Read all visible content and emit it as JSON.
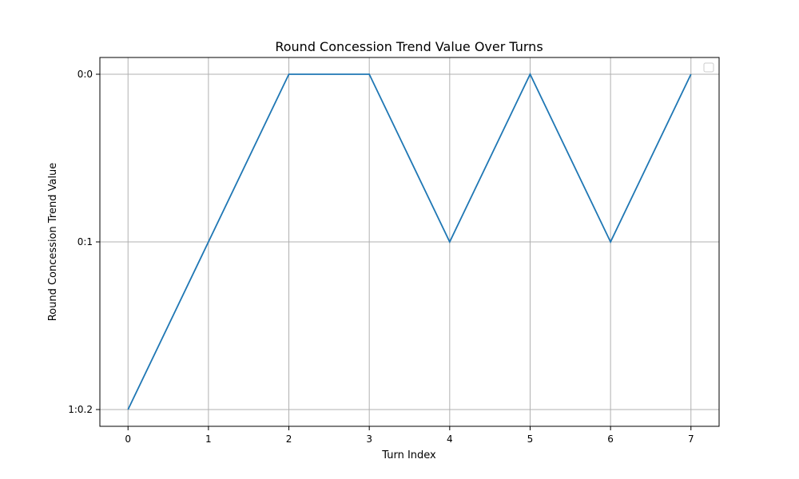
{
  "chart_data": {
    "type": "line",
    "title": "Round Concession Trend Value Over Turns",
    "xlabel": "Turn Index",
    "ylabel": "Round Concession Trend Value",
    "x": [
      0,
      1,
      2,
      3,
      4,
      5,
      6,
      7
    ],
    "y_categories": [
      "1:0.2",
      "0:1",
      "0:0"
    ],
    "series": [
      {
        "values": [
          "1:0.2",
          "0:1",
          "0:0",
          "0:0",
          "0:1",
          "0:0",
          "0:1",
          "0:0"
        ],
        "color": "#1f77b4"
      }
    ],
    "xlim": [
      -0.35,
      7.35
    ],
    "grid": true,
    "legend": "upper-right, empty"
  }
}
